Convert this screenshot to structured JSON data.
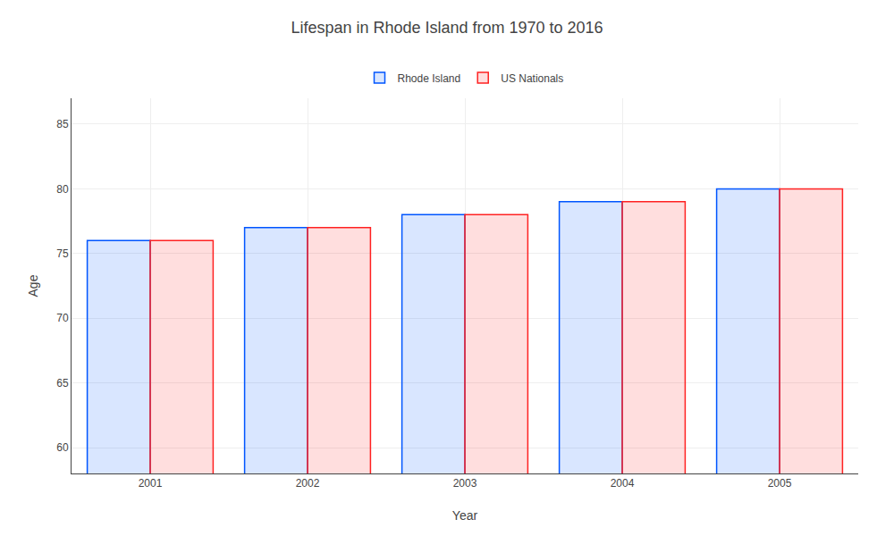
{
  "chart_data": {
    "type": "bar",
    "title": "Lifespan in Rhode Island from 1970 to 2016",
    "x_label": "Year",
    "y_label": "Age",
    "categories": [
      "2001",
      "2002",
      "2003",
      "2004",
      "2005"
    ],
    "series": [
      {
        "name": "Rhode Island",
        "color": "#0055ff",
        "values": [
          76,
          77,
          78,
          79,
          80
        ]
      },
      {
        "name": "US Nationals",
        "color": "#ff2222",
        "values": [
          76,
          77,
          78,
          79,
          80
        ]
      }
    ],
    "ylim": [
      58,
      87
    ],
    "yticks": [
      60,
      65,
      70,
      75,
      80,
      85
    ],
    "grid": true,
    "legend": "top"
  }
}
